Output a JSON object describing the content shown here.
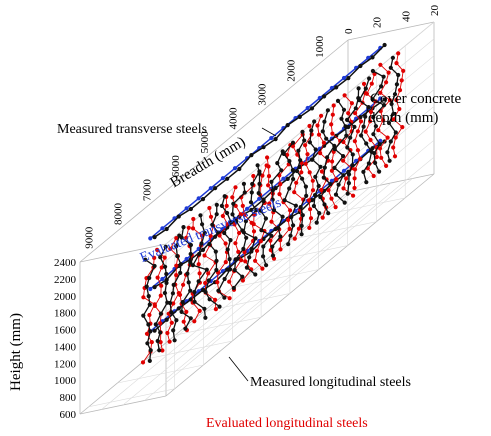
{
  "chart_data": {
    "type": "scatter",
    "projection": "3d",
    "axes": {
      "breadth": {
        "label": "Breadth (mm)",
        "ticks": [
          "1000",
          "2000",
          "3000",
          "4000",
          "5000",
          "6000",
          "7000",
          "8000",
          "9000"
        ],
        "range": [
          0,
          9300
        ]
      },
      "height": {
        "label": "Height (mm)",
        "ticks": [
          "600",
          "800",
          "1000",
          "1200",
          "1400",
          "1600",
          "1800",
          "2000",
          "2200",
          "2400"
        ],
        "range": [
          600,
          2400
        ]
      },
      "depth": {
        "label": "Cover concrete depth (mm)",
        "label_lines": [
          "Cover concrete",
          "depth (mm)"
        ],
        "ticks": [
          "0",
          "20",
          "40",
          "20"
        ],
        "range": [
          0,
          40
        ]
      }
    },
    "annotations": {
      "measured_transverse": "Measured transverse steels",
      "evaluated_transverse": "Evaluated transverse steels",
      "measured_longitudinal": "Measured longitudinal steels",
      "evaluated_longitudinal": "Evaluated longitudinal steels"
    },
    "series": [
      {
        "name": "Evaluated transverse steels",
        "kind": "transverse",
        "color": "#1f3bd6",
        "heights": [
          2400,
          1800,
          1300
        ]
      },
      {
        "name": "Measured transverse steels",
        "kind": "transverse",
        "color": "#111111",
        "heights": [
          2400,
          1800,
          1300
        ]
      },
      {
        "name": "Evaluated longitudinal steels",
        "kind": "longitudinal",
        "color": "#e00000",
        "x_start": 400,
        "x_step": 430,
        "count": 21
      },
      {
        "name": "Measured longitudinal steels",
        "kind": "longitudinal",
        "color": "#111111",
        "x_start": 600,
        "x_step": 440,
        "count": 20
      }
    ],
    "grid": true
  }
}
